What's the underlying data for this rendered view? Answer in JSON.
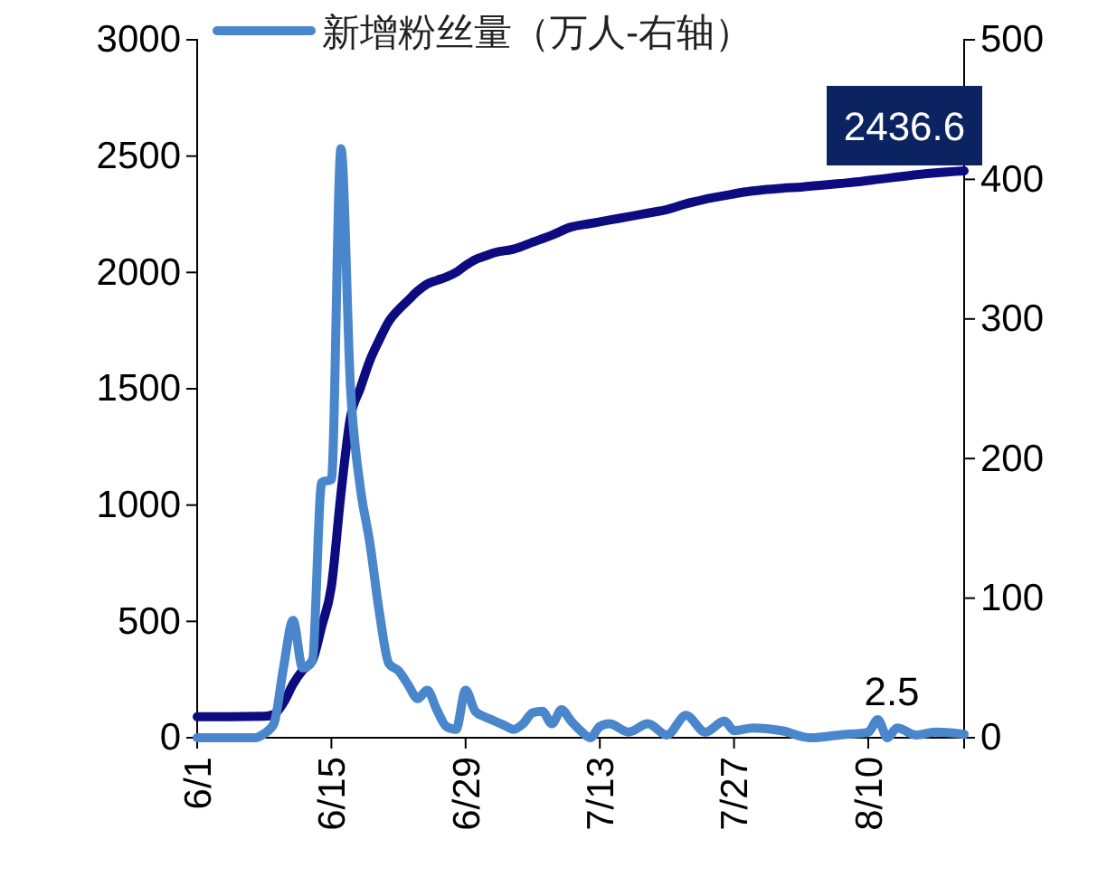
{
  "chart_data": {
    "type": "line",
    "legend": "top",
    "ylim": [
      0,
      3000
    ],
    "yticks": [
      0,
      500,
      1000,
      1500,
      2000,
      2500,
      3000
    ],
    "y2lim": [
      0,
      500
    ],
    "y2ticks": [
      0,
      100,
      200,
      300,
      400,
      500
    ],
    "xlim": [
      "--06-01",
      "--08-20"
    ],
    "xticks": [
      {
        "value": "--06-01",
        "label": "6/1"
      },
      {
        "value": "--06-15",
        "label": "6/15"
      },
      {
        "value": "--06-29",
        "label": "6/29"
      },
      {
        "value": "--07-13",
        "label": "7/13"
      },
      {
        "value": "--07-27",
        "label": "7/27"
      },
      {
        "value": "--08-10",
        "label": "8/10"
      }
    ],
    "series": [
      {
        "color": "#0c0c80",
        "x": [
          "--06-01",
          "--06-08",
          "--06-09",
          "--06-10",
          "--06-11",
          "--06-12",
          "--06-13",
          "--06-14",
          "--06-15",
          "--06-16",
          "--06-17",
          "--06-18",
          "--06-19",
          "--06-20",
          "--06-21",
          "--06-22",
          "--06-23",
          "--06-24",
          "--06-25",
          "--06-26",
          "--06-27",
          "--06-28",
          "--06-29",
          "--06-30",
          "--07-01",
          "--07-02",
          "--07-04",
          "--07-06",
          "--07-08",
          "--07-10",
          "--07-12",
          "--07-14",
          "--07-16",
          "--07-18",
          "--07-20",
          "--07-22",
          "--07-24",
          "--07-26",
          "--07-28",
          "--07-30",
          "--08-01",
          "--08-03",
          "--08-05",
          "--08-07",
          "--08-09",
          "--08-11",
          "--08-13",
          "--08-15",
          "--08-17",
          "--08-20"
        ],
        "values": [
          90,
          92,
          100,
          150,
          230,
          290,
          330,
          480,
          650,
          1050,
          1380,
          1500,
          1620,
          1710,
          1790,
          1840,
          1880,
          1920,
          1950,
          1966,
          1980,
          2000,
          2030,
          2055,
          2070,
          2085,
          2100,
          2130,
          2160,
          2195,
          2210,
          2225,
          2240,
          2255,
          2270,
          2295,
          2315,
          2330,
          2345,
          2355,
          2362,
          2367,
          2374,
          2382,
          2390,
          2400,
          2410,
          2420,
          2428,
          2436.6
        ],
        "value_labels": [
          null,
          null,
          null,
          null,
          null,
          null,
          null,
          null,
          null,
          null,
          null,
          null,
          null,
          null,
          null,
          null,
          null,
          null,
          null,
          null,
          null,
          null,
          null,
          null,
          null,
          null,
          null,
          null,
          null,
          null,
          null,
          null,
          null,
          null,
          null,
          null,
          null,
          null,
          null,
          null,
          null,
          null,
          null,
          null,
          null,
          null,
          null,
          null,
          null,
          "2436.6"
        ]
      },
      {
        "name": "新增粉丝量（万人-右轴）",
        "color": "#4a86cb",
        "axis": "y2",
        "x": [
          "--06-01",
          "--06-07",
          "--06-08",
          "--06-09",
          "--06-10",
          "--06-11",
          "--06-12",
          "--06-13",
          "--06-14",
          "--06-15",
          "--06-16",
          "--06-17",
          "--06-18",
          "--06-19",
          "--06-20",
          "--06-21",
          "--06-22",
          "--06-23",
          "--06-24",
          "--06-25",
          "--06-26",
          "--06-27",
          "--06-28",
          "--06-29",
          "--06-30",
          "--07-01",
          "--07-02",
          "--07-03",
          "--07-04",
          "--07-05",
          "--07-06",
          "--07-07",
          "--07-08",
          "--07-09",
          "--07-10",
          "--07-11",
          "--07-12",
          "--07-13",
          "--07-14",
          "--07-16",
          "--07-18",
          "--07-20",
          "--07-22",
          "--07-24",
          "--07-26",
          "--07-27",
          "--07-29",
          "--08-01",
          "--08-04",
          "--08-07",
          "--08-10",
          "--08-11",
          "--08-12",
          "--08-13",
          "--08-15",
          "--08-17",
          "--08-20"
        ],
        "values": [
          0,
          0,
          3,
          10,
          50,
          84,
          50,
          55,
          183,
          185,
          422,
          250,
          180,
          140,
          90,
          53,
          48,
          38,
          28,
          34,
          20,
          8,
          6,
          34,
          19,
          15,
          12,
          9,
          6,
          10,
          18,
          19,
          10,
          20,
          12,
          5,
          0,
          8,
          10,
          4,
          10,
          2,
          16,
          4,
          12,
          5,
          7,
          5,
          0,
          2,
          4,
          13,
          0,
          7,
          2,
          4,
          2.5
        ],
        "value_labels": [
          null,
          null,
          null,
          null,
          null,
          null,
          null,
          null,
          null,
          null,
          null,
          null,
          null,
          null,
          null,
          null,
          null,
          null,
          null,
          null,
          null,
          null,
          null,
          null,
          null,
          null,
          null,
          null,
          null,
          null,
          null,
          null,
          null,
          null,
          null,
          null,
          null,
          null,
          null,
          null,
          null,
          null,
          null,
          null,
          null,
          null,
          null,
          null,
          null,
          null,
          null,
          null,
          null,
          null,
          null,
          null,
          "2.5"
        ]
      }
    ]
  }
}
